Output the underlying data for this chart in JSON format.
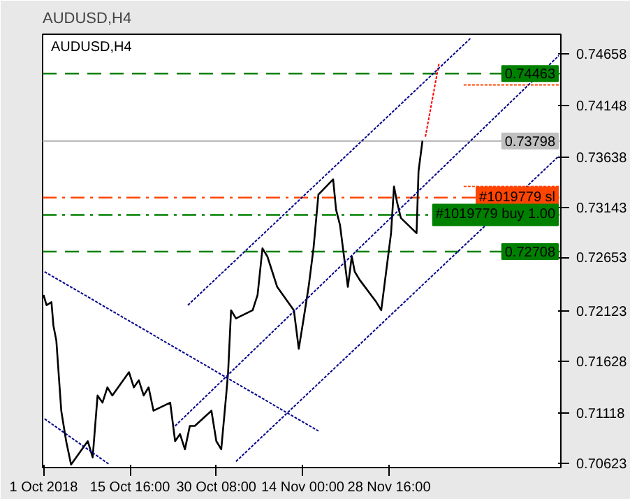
{
  "chart_data": {
    "type": "line",
    "title": "AUDUSD,H4",
    "subtitle": "AUDUSD,H4",
    "xlim": [
      "2018-09-30T20:00",
      "2018-12-27T20:00"
    ],
    "xticks": [
      {
        "value": "2018-10-01",
        "label": "1 Oct 2018"
      },
      {
        "value": "2018-10-15T16:00",
        "label": "15 Oct 16:00"
      },
      {
        "value": "2018-10-30T08:00",
        "label": "30 Oct 08:00"
      },
      {
        "value": "2018-11-14T00:00",
        "label": "14 Nov 00:00"
      },
      {
        "value": "2018-11-28T16:00",
        "label": "28 Nov 16:00"
      }
    ],
    "ylim": [
      0.7058,
      0.7485
    ],
    "yticks": [
      0.70623,
      0.71118,
      0.71628,
      0.72123,
      0.72653,
      0.73143,
      0.73638,
      0.74148,
      0.74658
    ],
    "grid": false,
    "series": [
      {
        "color": "#000000",
        "line_style": "solid",
        "x": [
          "2018-10-01T00:00",
          "2018-10-01T12:00",
          "2018-10-02T08:00",
          "2018-10-02T16:00",
          "2018-10-03T04:00",
          "2018-10-04T00:00",
          "2018-10-04T20:00",
          "2018-10-05T16:00",
          "2018-10-08T12:00",
          "2018-10-09T08:00",
          "2018-10-10T04:00",
          "2018-10-11T00:00",
          "2018-10-11T20:00",
          "2018-10-12T16:00",
          "2018-10-15T12:00",
          "2018-10-16T08:00",
          "2018-10-17T04:00",
          "2018-10-18T00:00",
          "2018-10-18T20:00",
          "2018-10-19T16:00",
          "2018-10-22T12:00",
          "2018-10-23T08:00",
          "2018-10-24T04:00",
          "2018-10-25T00:00",
          "2018-10-25T20:00",
          "2018-10-26T16:00",
          "2018-10-29T12:00",
          "2018-10-30T08:00",
          "2018-10-31T04:00",
          "2018-11-01T00:00",
          "2018-11-01T08:00",
          "2018-11-01T20:00",
          "2018-11-02T16:00",
          "2018-11-05T12:00",
          "2018-11-06T08:00",
          "2018-11-07T04:00",
          "2018-11-08T00:00",
          "2018-11-08T20:00",
          "2018-11-09T16:00",
          "2018-11-12T12:00",
          "2018-11-13T08:00",
          "2018-11-14T04:00",
          "2018-11-15T00:00",
          "2018-11-15T20:00",
          "2018-11-16T16:00",
          "2018-11-19T04:00",
          "2018-11-19T16:00",
          "2018-11-20T08:00",
          "2018-11-21T04:00",
          "2018-11-21T16:00",
          "2018-11-22T08:00",
          "2018-11-22T20:00",
          "2018-11-23T16:00",
          "2018-11-26T12:00",
          "2018-11-27T08:00",
          "2018-11-28T04:00",
          "2018-11-29T00:00",
          "2018-11-29T12:00",
          "2018-11-30T00:00",
          "2018-11-30T16:00",
          "2018-12-03T08:00",
          "2018-12-03T16:00",
          "2018-12-04T00:00",
          "2018-12-04T08:00"
        ],
        "values": [
          0.7228,
          0.7218,
          0.7221,
          0.7198,
          0.7183,
          0.7114,
          0.7084,
          0.7061,
          0.7084,
          0.7068,
          0.7129,
          0.7122,
          0.7137,
          0.7129,
          0.7152,
          0.7137,
          0.7144,
          0.7129,
          0.7137,
          0.7114,
          0.7122,
          0.7084,
          0.7091,
          0.7076,
          0.7099,
          0.7099,
          0.7114,
          0.7084,
          0.7076,
          0.7129,
          0.7152,
          0.7213,
          0.7205,
          0.7213,
          0.7228,
          0.7274,
          0.7266,
          0.7251,
          0.7236,
          0.7213,
          0.7175,
          0.7205,
          0.7236,
          0.7274,
          0.7327,
          0.7342,
          0.7312,
          0.7297,
          0.7259,
          0.7236,
          0.7266,
          0.7251,
          0.7243,
          0.7221,
          0.7213,
          0.7251,
          0.7289,
          0.7335,
          0.732,
          0.7304,
          0.7289,
          0.735,
          0.7365,
          0.738
        ]
      },
      {
        "color": "#ff0000",
        "line_style": "dotted",
        "x": [
          "2018-12-04T20:00",
          "2018-12-07T04:00"
        ],
        "values": [
          0.7384,
          0.7457
        ]
      },
      {
        "color": "#ff4500",
        "line_style": "dotted",
        "x": [
          "2018-12-11T08:00",
          "2018-12-27T12:00"
        ],
        "values": [
          0.7435,
          0.7435
        ]
      },
      {
        "color": "#ff4500",
        "line_style": "dotted",
        "x": [
          "2018-12-11T08:00",
          "2018-12-27T12:00"
        ],
        "values": [
          0.7335,
          0.7335
        ]
      },
      {
        "color": "#00008b",
        "line_style": "dotted",
        "x": [
          "2018-10-25T12:00",
          "2018-12-12T12:00"
        ],
        "values": [
          0.7218,
          0.7481
        ]
      },
      {
        "color": "#00008b",
        "line_style": "dotted",
        "x": [
          "2018-10-23T08:00",
          "2018-12-27T12:00"
        ],
        "values": [
          0.7099,
          0.7464
        ]
      },
      {
        "color": "#00008b",
        "line_style": "dotted",
        "x": [
          "2018-11-02T16:00",
          "2018-12-27T12:00"
        ],
        "values": [
          0.7064,
          0.7365
        ]
      },
      {
        "color": "#00008b",
        "line_style": "dotted",
        "x": [
          "2018-10-01T04:00",
          "2018-11-16T16:00"
        ],
        "values": [
          0.7251,
          0.7094
        ]
      },
      {
        "color": "#00008b",
        "line_style": "dotted",
        "x": [
          "2018-10-01T04:00",
          "2018-10-12T04:00"
        ],
        "values": [
          0.7106,
          0.7061
        ]
      }
    ],
    "ref_lines": [
      {
        "axis": "y",
        "value": 0.74463,
        "label": "0.74463",
        "color": "#008000",
        "line_style": "dashed"
      },
      {
        "axis": "y",
        "value": 0.73798,
        "label": "0.73798",
        "color": "#c0c0c0",
        "line_style": "solid"
      },
      {
        "axis": "y",
        "value": 0.7324,
        "label": "#1019779 sl",
        "color": "#ff4500",
        "line_style": "dashdot"
      },
      {
        "axis": "y",
        "value": 0.7307,
        "label": "#1019779 buy 1.00",
        "color": "#008000",
        "line_style": "dashdot"
      },
      {
        "axis": "y",
        "value": 0.72708,
        "label": "0.72708",
        "color": "#008000",
        "line_style": "dashed"
      }
    ]
  }
}
